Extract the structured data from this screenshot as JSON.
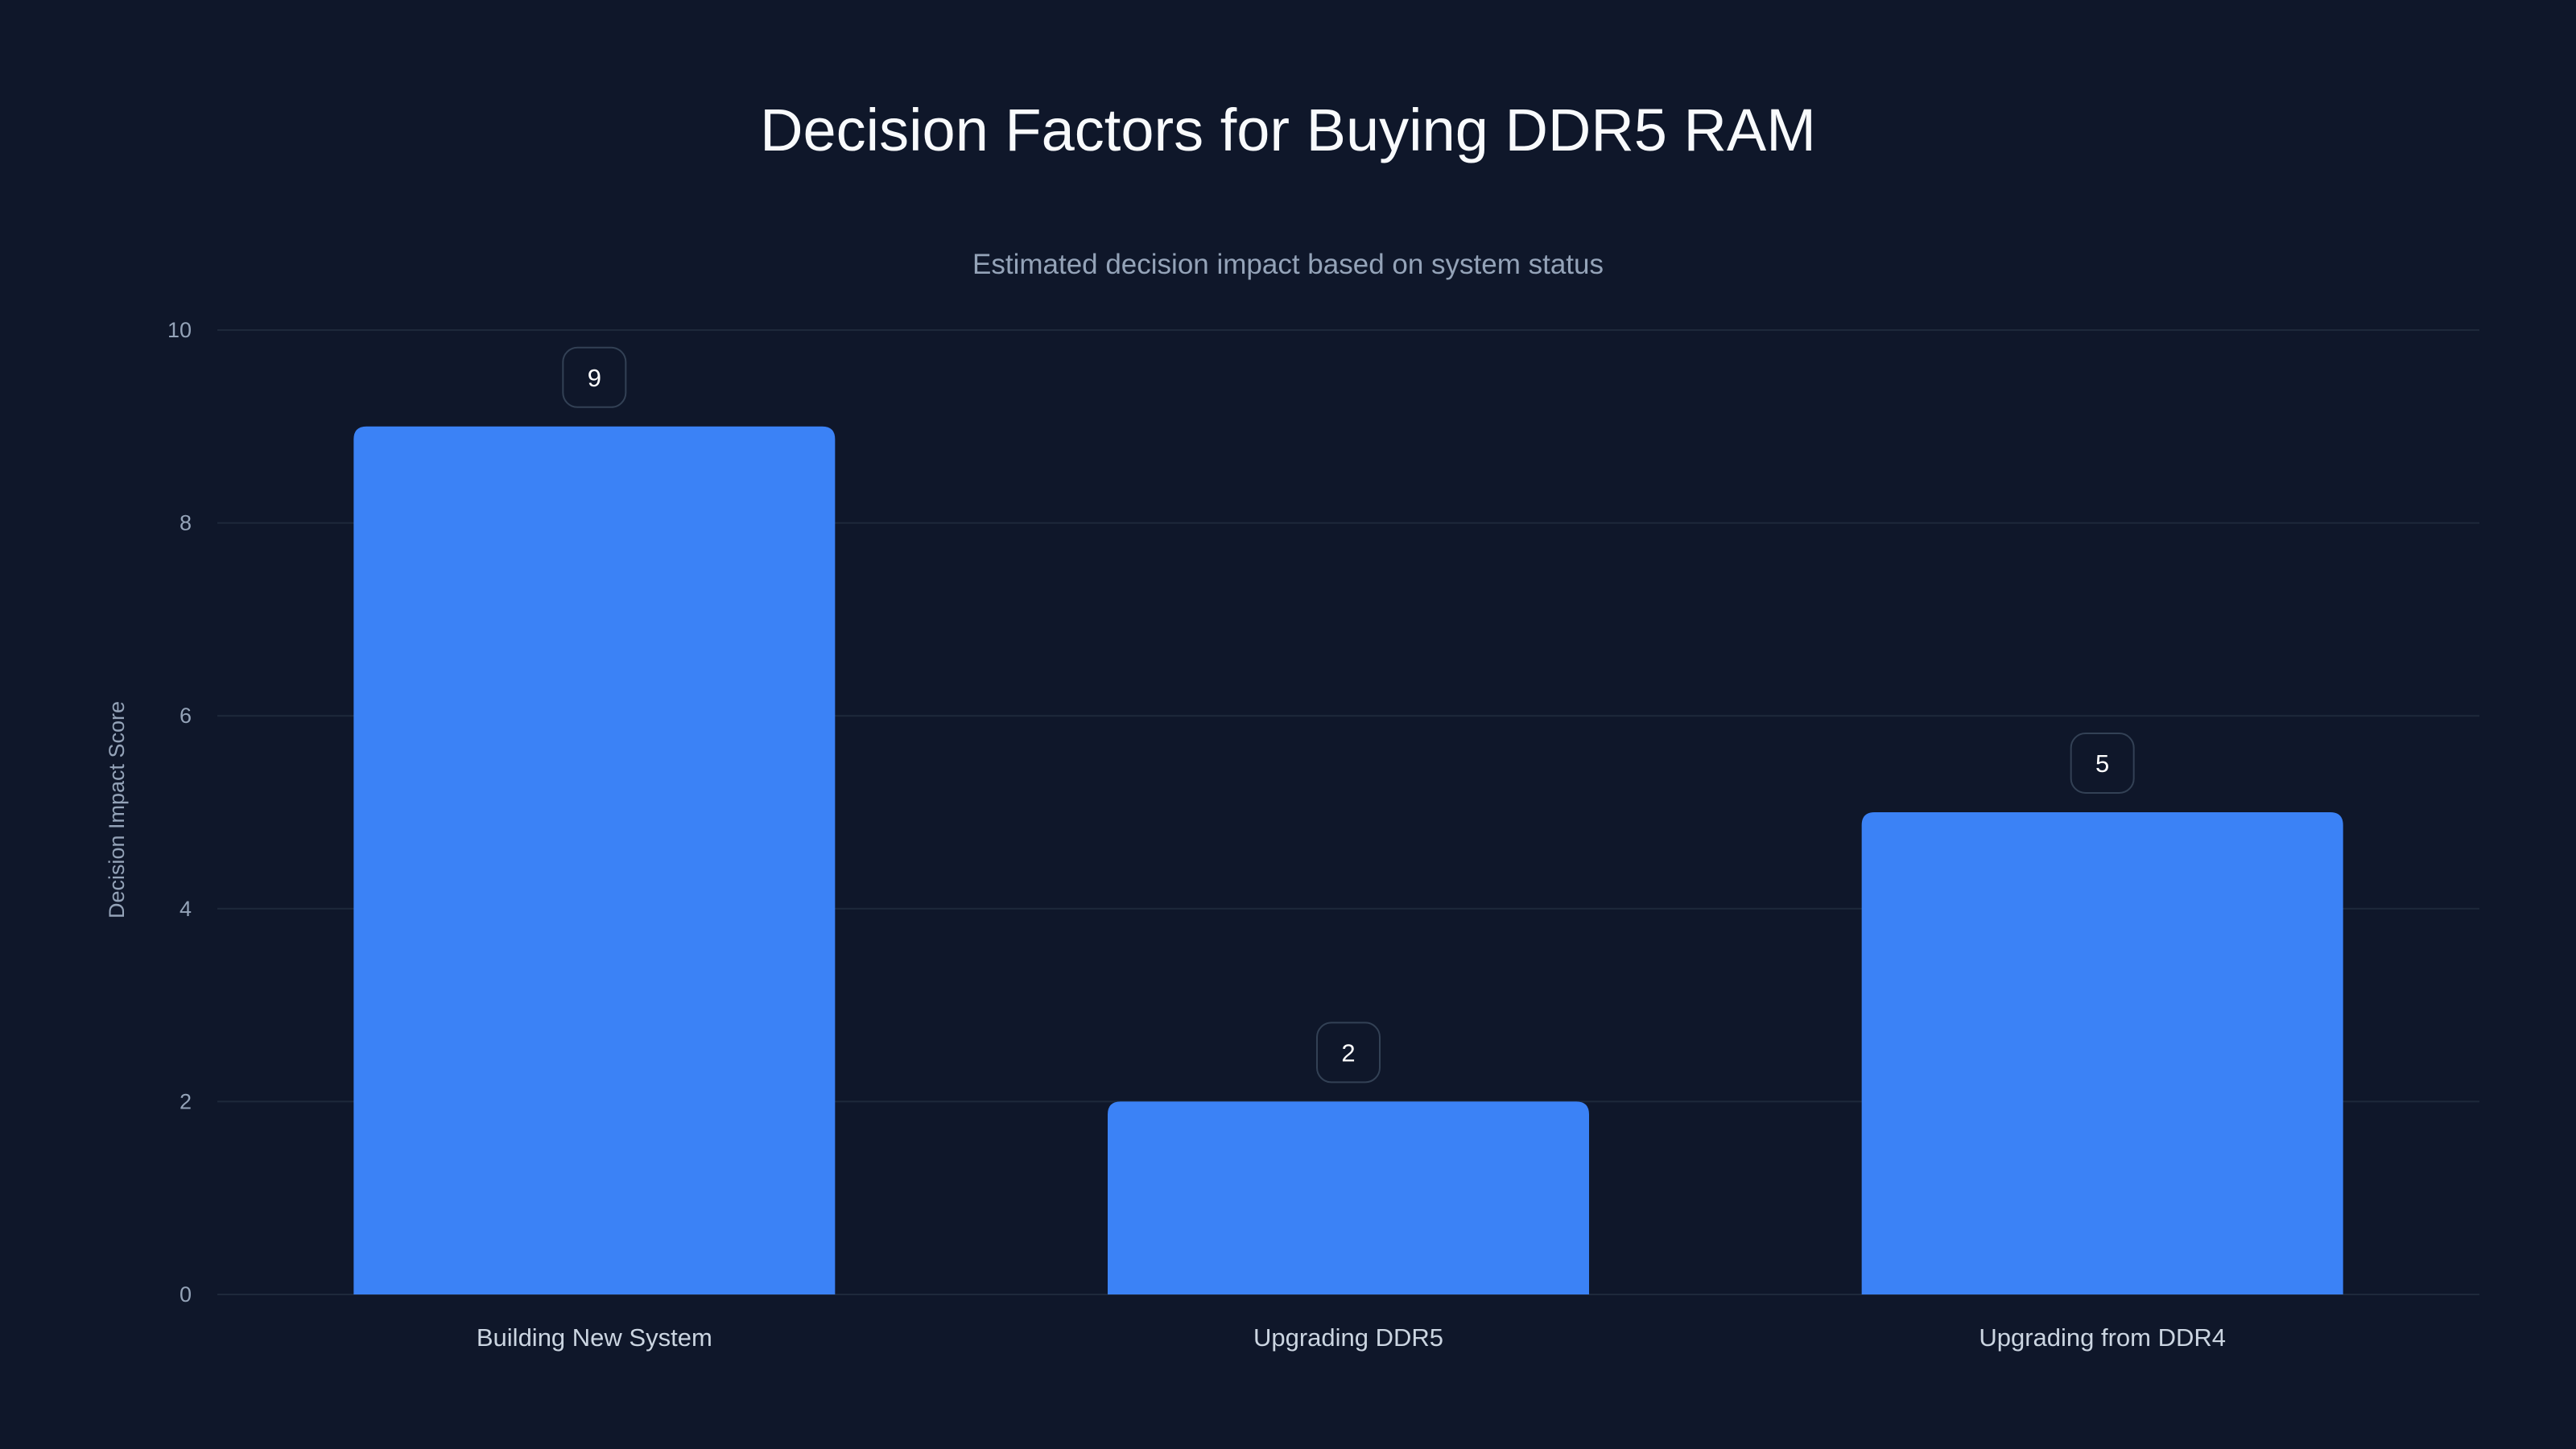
{
  "chart_data": {
    "type": "bar",
    "title": "Decision Factors for Buying DDR5 RAM",
    "subtitle": "Estimated decision impact based on system status",
    "xlabel": "",
    "ylabel": "Decision Impact Score",
    "categories": [
      "Building New System",
      "Upgrading DDR5",
      "Upgrading from DDR4"
    ],
    "values": [
      9,
      2,
      5
    ],
    "data_labels": [
      "9",
      "2",
      "5"
    ],
    "ylim": [
      0,
      10
    ],
    "yticks": [
      0,
      2,
      4,
      6,
      8,
      10
    ],
    "ytick_labels": [
      "0",
      "2",
      "4",
      "6",
      "8",
      "10"
    ],
    "grid": true,
    "legend": "none",
    "colors": {
      "background": "#0f172a",
      "bar": "#3b82f6",
      "grid": "#1e293b",
      "title": "#f8fafc",
      "subtitle": "#94a3b8",
      "tick": "#94a3b8",
      "category": "#cbd5e1",
      "label_border": "#334155",
      "label_text": "#ffffff"
    }
  }
}
